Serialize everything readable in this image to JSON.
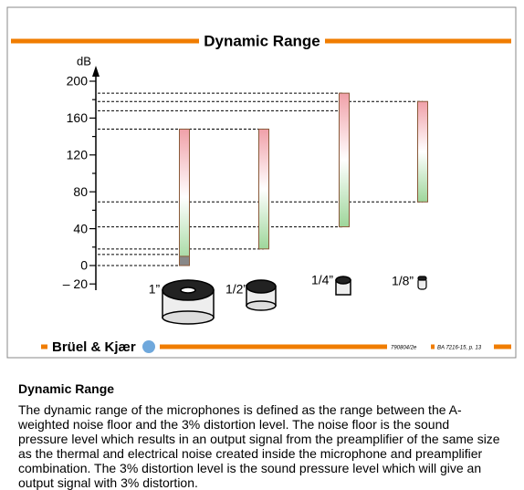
{
  "chart_data": {
    "type": "floating-bar",
    "title": "Dynamic Range",
    "y_label": "dB",
    "categories": [
      "1”",
      "1/2”",
      "1/4”",
      "1/8”"
    ],
    "lows": [
      0,
      18,
      42,
      69
    ],
    "highs": [
      148,
      148,
      187,
      178
    ],
    "gray_top": 10,
    "reference_lines": [
      187,
      178,
      168,
      148,
      69,
      42,
      18,
      12,
      0
    ],
    "ylim": [
      -25,
      210
    ],
    "yticks": [
      {
        "value": -20,
        "label": "– 20"
      },
      0,
      20,
      40,
      60,
      80,
      100,
      120,
      140,
      160,
      180,
      200
    ],
    "labeled_ticks": [
      -20,
      0,
      40,
      80,
      120,
      160,
      200
    ],
    "accent_color": "#f07d00"
  },
  "footer": {
    "brand": "Brüel & Kjær",
    "code": "790804/2e",
    "reference": "BA 7216-15, p. 13"
  },
  "section": {
    "heading": "Dynamic Range",
    "paragraph": "The dynamic range of the microphones is defined as the range between the A-weighted noise floor and the 3% distortion level. The noise floor is the sound pressure level which results in an output signal from the preamplifier of the same size as the thermal and electrical noise created inside the microphone and preamplifier combination. The 3% distortion level is the sound pressure level which will give an output signal with 3% distortion."
  }
}
